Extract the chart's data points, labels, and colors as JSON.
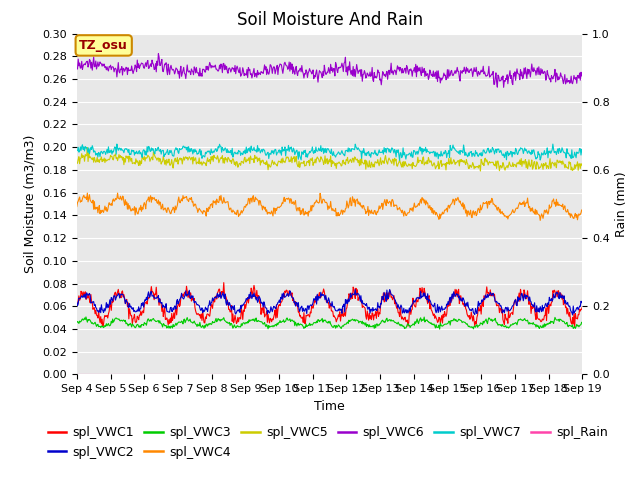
{
  "title": "Soil Moisture And Rain",
  "xlabel": "Time",
  "ylabel_left": "Soil Moisture (m3/m3)",
  "ylabel_right": "Rain (mm)",
  "ylim_left": [
    0.0,
    0.3
  ],
  "ylim_right": [
    0.0,
    1.0
  ],
  "yticks_left": [
    0.0,
    0.02,
    0.04,
    0.06,
    0.08,
    0.1,
    0.12,
    0.14,
    0.16,
    0.18,
    0.2,
    0.22,
    0.24,
    0.26,
    0.28,
    0.3
  ],
  "yticks_right": [
    0.0,
    0.2,
    0.4,
    0.6,
    0.8,
    1.0
  ],
  "background_color": "#e8e8e8",
  "annotation_text": "TZ_osu",
  "series": {
    "spl_VWC1": {
      "color": "#ff0000",
      "base": 0.06,
      "amp": 0.012,
      "freq": 15.0,
      "noise": 0.003,
      "trend": 0.0
    },
    "spl_VWC2": {
      "color": "#0000cc",
      "base": 0.063,
      "amp": 0.007,
      "freq": 15.0,
      "noise": 0.002,
      "trend": 0.0
    },
    "spl_VWC3": {
      "color": "#00cc00",
      "base": 0.045,
      "amp": 0.003,
      "freq": 15.0,
      "noise": 0.001,
      "trend": 0.0
    },
    "spl_VWC4": {
      "color": "#ff8800",
      "base": 0.15,
      "amp": 0.006,
      "freq": 15.0,
      "noise": 0.002,
      "trend": -0.005
    },
    "spl_VWC5": {
      "color": "#cccc00",
      "base": 0.19,
      "amp": 0.002,
      "freq": 15.0,
      "noise": 0.002,
      "trend": -0.006
    },
    "spl_VWC6": {
      "color": "#9900cc",
      "base": 0.271,
      "amp": 0.003,
      "freq": 8.0,
      "noise": 0.003,
      "trend": -0.008
    },
    "spl_VWC7": {
      "color": "#00cccc",
      "base": 0.197,
      "amp": 0.002,
      "freq": 15.0,
      "noise": 0.002,
      "trend": -0.002
    },
    "spl_Rain": {
      "color": "#ff44aa",
      "base": 0.0,
      "amp": 0.0,
      "freq": 0,
      "noise": 0.0,
      "trend": 0.0
    }
  },
  "legend_order": [
    "spl_VWC1",
    "spl_VWC2",
    "spl_VWC3",
    "spl_VWC4",
    "spl_VWC5",
    "spl_VWC6",
    "spl_VWC7",
    "spl_Rain"
  ],
  "xtick_labels": [
    "Sep 4",
    "Sep 5",
    "Sep 6",
    "Sep 7",
    "Sep 8",
    "Sep 9",
    "Sep 10",
    "Sep 11",
    "Sep 12",
    "Sep 13",
    "Sep 14",
    "Sep 15",
    "Sep 16",
    "Sep 17",
    "Sep 18",
    "Sep 19"
  ],
  "title_fontsize": 12,
  "label_fontsize": 9,
  "tick_fontsize": 8,
  "legend_fontsize": 9,
  "num_points": 720,
  "random_seed": 42
}
